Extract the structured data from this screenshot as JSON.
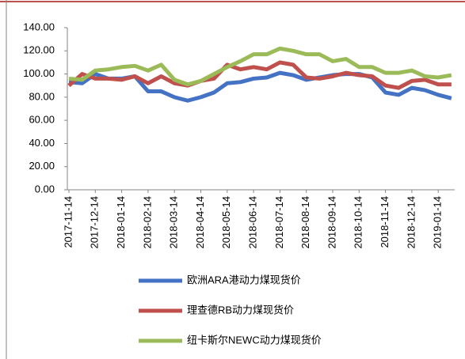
{
  "chart_data": {
    "type": "line",
    "categories": [
      "2017-11-14",
      null,
      "2017-12-14",
      null,
      "2018-01-14",
      null,
      "2018-02-14",
      null,
      "2018-03-14",
      null,
      "2018-04-14",
      null,
      "2018-05-14",
      null,
      "2018-06-14",
      null,
      "2018-07-14",
      null,
      "2018-08-14",
      null,
      "2018-09-14",
      null,
      "2018-10-14",
      null,
      "2018-11-14",
      null,
      "2018-12-14",
      null,
      "2019-01-14",
      null
    ],
    "series": [
      {
        "name": "欧洲ARA港动力煤现货价",
        "color": "#4472c4",
        "values": [
          93,
          92,
          100,
          96,
          96,
          98,
          85,
          85,
          80,
          77,
          80,
          84,
          92,
          93,
          96,
          97,
          101,
          99,
          95,
          97,
          99,
          100,
          100,
          97,
          84,
          82,
          88,
          86,
          82,
          79
        ]
      },
      {
        "name": "理查德RB动力煤现货价",
        "color": "#c0504d",
        "values": [
          90,
          100,
          96,
          96,
          95,
          98,
          92,
          98,
          92,
          90,
          94,
          96,
          108,
          104,
          106,
          104,
          110,
          108,
          97,
          96,
          98,
          101,
          99,
          98,
          90,
          88,
          94,
          95,
          91,
          91
        ]
      },
      {
        "name": "纽卡斯尔NEWC动力煤现货价",
        "color": "#9bbb59",
        "values": [
          96,
          95,
          103,
          104,
          106,
          107,
          103,
          108,
          95,
          91,
          94,
          100,
          106,
          111,
          117,
          117,
          122,
          120,
          117,
          117,
          111,
          113,
          106,
          106,
          101,
          101,
          103,
          98,
          97,
          99
        ]
      }
    ],
    "ylim": [
      0,
      140
    ],
    "yticks": [
      {
        "value": 0,
        "label": "0.00"
      },
      {
        "value": 20,
        "label": "20.00"
      },
      {
        "value": 40,
        "label": "40.00"
      },
      {
        "value": 60,
        "label": "60.00"
      },
      {
        "value": 80,
        "label": "80.00"
      },
      {
        "value": 100,
        "label": "100.00"
      },
      {
        "value": 120,
        "label": "120.00"
      },
      {
        "value": 140,
        "label": "140.00"
      }
    ]
  }
}
